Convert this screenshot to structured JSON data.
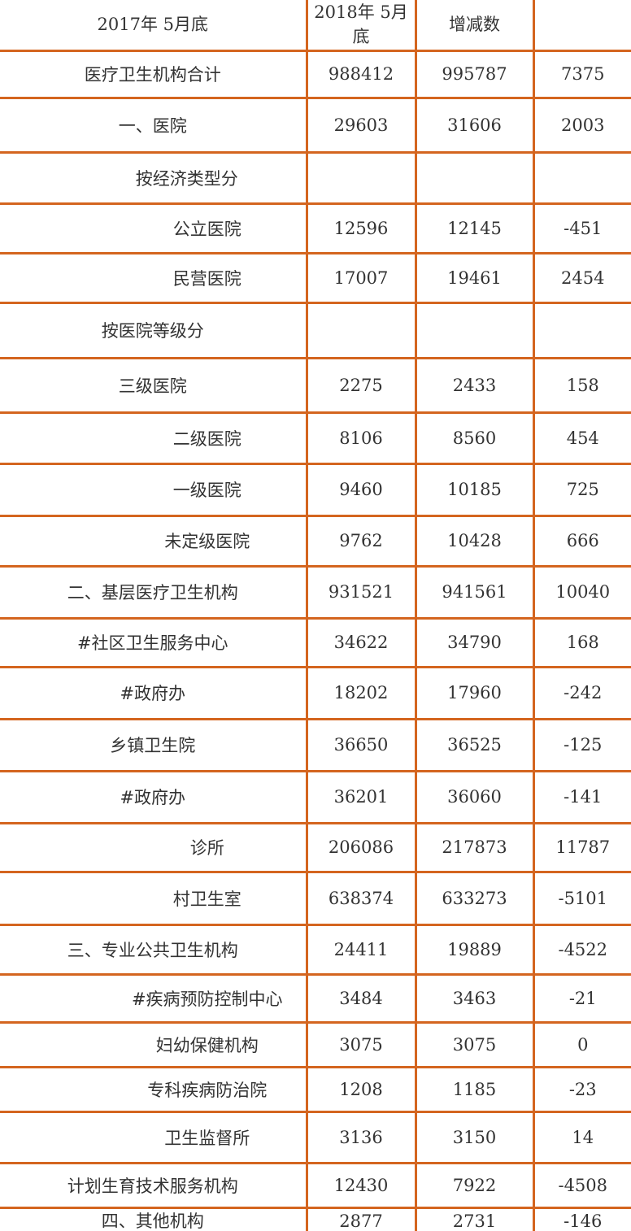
{
  "header": [
    "2017年 5月底",
    "2018年 5月底",
    "增减数",
    ""
  ],
  "rows": [
    {
      "label": "医疗卫生机构合计",
      "v2017": "988412",
      "v2018": "995787",
      "diff": "7375"
    },
    {
      "label": "一、医院",
      "v2017": "29603",
      "v2018": "31606",
      "diff": "2003"
    },
    {
      "label": "按经济类型分",
      "v2017": "",
      "v2018": "",
      "diff": ""
    },
    {
      "label": "公立医院",
      "v2017": "12596",
      "v2018": "12145",
      "diff": "-451"
    },
    {
      "label": "民营医院",
      "v2017": "17007",
      "v2018": "19461",
      "diff": "2454"
    },
    {
      "label": "按医院等级分",
      "v2017": "",
      "v2018": "",
      "diff": ""
    },
    {
      "label": "三级医院",
      "v2017": "2275",
      "v2018": "2433",
      "diff": "158"
    },
    {
      "label": "二级医院",
      "v2017": "8106",
      "v2018": "8560",
      "diff": "454"
    },
    {
      "label": "一级医院",
      "v2017": "9460",
      "v2018": "10185",
      "diff": "725"
    },
    {
      "label": "未定级医院",
      "v2017": "9762",
      "v2018": "10428",
      "diff": "666"
    },
    {
      "label": "二、基层医疗卫生机构",
      "v2017": "931521",
      "v2018": "941561",
      "diff": "10040"
    },
    {
      "label": "#社区卫生服务中心",
      "v2017": "34622",
      "v2018": "34790",
      "diff": "168"
    },
    {
      "label": "#政府办",
      "v2017": "18202",
      "v2018": "17960",
      "diff": "-242"
    },
    {
      "label": "乡镇卫生院",
      "v2017": "36650",
      "v2018": "36525",
      "diff": "-125"
    },
    {
      "label": "#政府办",
      "v2017": "36201",
      "v2018": "36060",
      "diff": "-141"
    },
    {
      "label": "诊所",
      "v2017": "206086",
      "v2018": "217873",
      "diff": "11787"
    },
    {
      "label": "村卫生室",
      "v2017": "638374",
      "v2018": "633273",
      "diff": "-5101"
    },
    {
      "label": "三、专业公共卫生机构",
      "v2017": "24411",
      "v2018": "19889",
      "diff": "-4522"
    },
    {
      "label": "#疾病预防控制中心",
      "v2017": "3484",
      "v2018": "3463",
      "diff": "-21"
    },
    {
      "label": "妇幼保健机构",
      "v2017": "3075",
      "v2018": "3075",
      "diff": "0"
    },
    {
      "label": "专科疾病防治院",
      "v2017": "1208",
      "v2018": "1185",
      "diff": "-23"
    },
    {
      "label": "卫生监督所",
      "v2017": "3136",
      "v2018": "3150",
      "diff": "14"
    },
    {
      "label": "计划生育技术服务机构",
      "v2017": "12430",
      "v2018": "7922",
      "diff": "-4508"
    },
    {
      "label": "四、其他机构",
      "v2017": "2877",
      "v2018": "2731",
      "diff": "-146"
    }
  ],
  "border_color": "#d4651f"
}
